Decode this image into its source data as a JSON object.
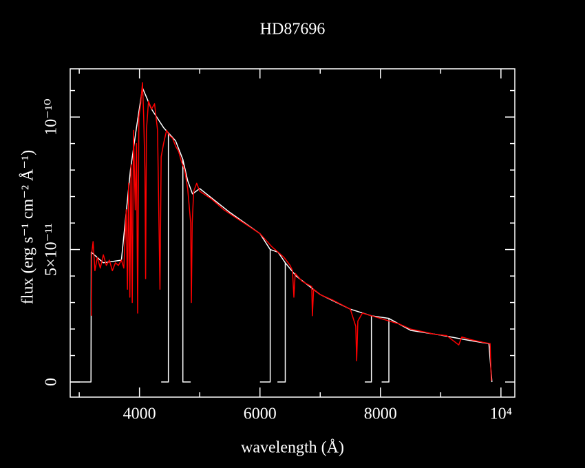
{
  "chart_data": {
    "type": "line",
    "title": "HD87696",
    "xlabel": "wavelength (Å)",
    "ylabel": "flux (erg s⁻¹ cm⁻² Å⁻¹)",
    "xlim": [
      2850,
      10230
    ],
    "ylim": [
      -5.7e-12,
      1.182e-10
    ],
    "xticks": [
      4000,
      6000,
      8000,
      {
        "value": 10000,
        "label": "10⁴"
      }
    ],
    "xminorticks": [
      3000,
      5000,
      7000,
      9000
    ],
    "yticks": [
      0,
      {
        "value": 5e-11,
        "label": "5×10⁻¹¹"
      },
      {
        "value": 1e-10,
        "label": "10⁻¹⁰"
      }
    ],
    "yminorticks": [
      1e-11,
      2e-11,
      3e-11,
      4e-11,
      6e-11,
      7e-11,
      8e-11,
      9e-11,
      1.1e-10
    ],
    "series": [
      {
        "color": "#ffffff",
        "x": [
          2850,
          3195,
          3200,
          3400,
          3700,
          3850,
          3950,
          4050,
          4200,
          4400,
          4480,
          4600,
          4720,
          4800,
          4880,
          5000,
          5500,
          6000,
          6170,
          6300,
          6420,
          6600,
          7000,
          7500,
          7850,
          8140,
          8500,
          9000,
          9500,
          9800,
          9850,
          null,
          4480,
          4480,
          4360,
          null,
          4720,
          4720,
          4850,
          null,
          6170,
          6170,
          6000,
          null,
          6420,
          6420,
          6290,
          null,
          7850,
          7850,
          7740,
          null,
          8140,
          8140,
          8020
        ],
        "values": [
          0,
          0,
          4.9e-11,
          4.5e-11,
          4.6e-11,
          8e-11,
          9.6e-11,
          1.11e-10,
          1.03e-10,
          9.6e-11,
          9.4e-11,
          9.1e-11,
          8.4e-11,
          7.6e-11,
          7.1e-11,
          7.3e-11,
          6.4e-11,
          5.6e-11,
          5e-11,
          4.9e-11,
          4.5e-11,
          4e-11,
          3.3e-11,
          2.75e-11,
          2.5e-11,
          2.4e-11,
          1.95e-11,
          1.77e-11,
          1.56e-11,
          1.45e-11,
          0,
          null,
          9.4e-11,
          0,
          0,
          null,
          8.4e-11,
          0,
          0,
          null,
          5e-11,
          0,
          0,
          null,
          4.5e-11,
          0,
          0,
          null,
          2.5e-11,
          0,
          0,
          null,
          2.4e-11,
          0,
          0
        ]
      },
      {
        "color": "#ff0000",
        "x": [
          3200,
          3205,
          3230,
          3260,
          3300,
          3350,
          3400,
          3450,
          3500,
          3550,
          3600,
          3650,
          3700,
          3740,
          3780,
          3800,
          3820,
          3840,
          3860,
          3880,
          3900,
          3930,
          3950,
          3970,
          3990,
          4020,
          4050,
          4070,
          4090,
          4102,
          4115,
          4150,
          4200,
          4250,
          4300,
          4340,
          4360,
          4400,
          4450,
          4500,
          4550,
          4600,
          4650,
          4700,
          4750,
          4800,
          4850,
          4861,
          4875,
          4900,
          4950,
          5000,
          5200,
          5400,
          5600,
          5800,
          6000,
          6200,
          6400,
          6500,
          6540,
          6563,
          6585,
          6700,
          6860,
          6870,
          6890,
          7000,
          7200,
          7500,
          7590,
          7605,
          7625,
          7700,
          8000,
          8300,
          8500,
          8700,
          8900,
          9100,
          9300,
          9350,
          9500,
          9700,
          9820,
          9840
        ],
        "values": [
          2.5e-11,
          4.8e-11,
          5.3e-11,
          4.2e-11,
          4.7e-11,
          4.3e-11,
          4.8e-11,
          4.4e-11,
          4.6e-11,
          4.2e-11,
          4.5e-11,
          4.4e-11,
          4.6e-11,
          4.3e-11,
          6.5e-11,
          3.5e-11,
          7.5e-11,
          3.2e-11,
          8.2e-11,
          3e-11,
          9.5e-11,
          6.5e-11,
          9e-11,
          2.6e-11,
          1e-10,
          1.05e-10,
          1.13e-10,
          1e-10,
          8e-11,
          3.9e-11,
          9.5e-11,
          1.06e-10,
          1.03e-10,
          1.05e-10,
          9.5e-11,
          3.5e-11,
          8.5e-11,
          9e-11,
          9.5e-11,
          9.3e-11,
          9.2e-11,
          8.9e-11,
          8.7e-11,
          8.3e-11,
          8e-11,
          7.3e-11,
          6e-11,
          3e-11,
          6e-11,
          7.2e-11,
          7.5e-11,
          7.2e-11,
          6.9e-11,
          6.5e-11,
          6.2e-11,
          5.9e-11,
          5.6e-11,
          5.1e-11,
          4.7e-11,
          4.4e-11,
          4.2e-11,
          3.2e-11,
          4.1e-11,
          3.8e-11,
          3.6e-11,
          2.5e-11,
          3.5e-11,
          3.3e-11,
          3.1e-11,
          2.75e-11,
          2.1e-11,
          8e-12,
          2.3e-11,
          2.6e-11,
          2.4e-11,
          2.2e-11,
          2e-11,
          1.9e-11,
          1.8e-11,
          1.75e-11,
          1.4e-11,
          1.7e-11,
          1.6e-11,
          1.5e-11,
          1.45e-11,
          5e-13
        ]
      }
    ]
  }
}
